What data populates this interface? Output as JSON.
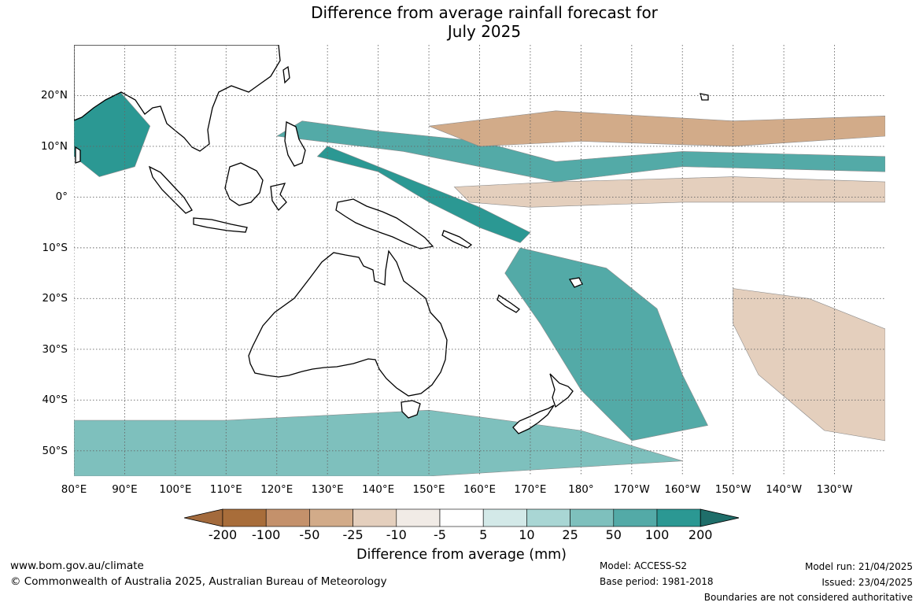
{
  "title": {
    "line1": "Difference from average rainfall forecast for",
    "line2": "July 2025"
  },
  "map": {
    "lon_range": [
      80,
      240
    ],
    "lat_range": [
      -55,
      30
    ],
    "lat_ticks": [
      {
        "value": 20,
        "label": "20°N"
      },
      {
        "value": 10,
        "label": "10°N"
      },
      {
        "value": 0,
        "label": "0°"
      },
      {
        "value": -10,
        "label": "10°S"
      },
      {
        "value": -20,
        "label": "20°S"
      },
      {
        "value": -30,
        "label": "30°S"
      },
      {
        "value": -40,
        "label": "40°S"
      },
      {
        "value": -50,
        "label": "50°S"
      }
    ],
    "lon_ticks": [
      {
        "value": 80,
        "label": "80°E"
      },
      {
        "value": 90,
        "label": "90°E"
      },
      {
        "value": 100,
        "label": "100°E"
      },
      {
        "value": 110,
        "label": "110°E"
      },
      {
        "value": 120,
        "label": "120°E"
      },
      {
        "value": 130,
        "label": "130°E"
      },
      {
        "value": 140,
        "label": "140°E"
      },
      {
        "value": 150,
        "label": "150°E"
      },
      {
        "value": 160,
        "label": "160°E"
      },
      {
        "value": 170,
        "label": "170°E"
      },
      {
        "value": 180,
        "label": "180°"
      },
      {
        "value": 190,
        "label": "170°W"
      },
      {
        "value": 200,
        "label": "160°W"
      },
      {
        "value": 210,
        "label": "150°W"
      },
      {
        "value": 220,
        "label": "140°W"
      },
      {
        "value": 230,
        "label": "130°W"
      }
    ],
    "anomaly_regions": [
      {
        "name": "Maritime Continent / western Pacific wet band",
        "level": 100,
        "points": [
          [
            128,
            8
          ],
          [
            140,
            5
          ],
          [
            150,
            -1
          ],
          [
            160,
            -6
          ],
          [
            168,
            -9
          ],
          [
            170,
            -7
          ],
          [
            160,
            -2
          ],
          [
            150,
            2
          ],
          [
            140,
            6
          ],
          [
            130,
            10
          ]
        ]
      },
      {
        "name": "Tropical band north of equator wet",
        "level": 50,
        "points": [
          [
            120,
            12
          ],
          [
            145,
            9
          ],
          [
            165,
            5
          ],
          [
            175,
            3
          ],
          [
            200,
            6
          ],
          [
            240,
            5
          ],
          [
            240,
            8
          ],
          [
            200,
            9
          ],
          [
            175,
            7
          ],
          [
            160,
            11
          ],
          [
            140,
            13
          ],
          [
            125,
            15
          ]
        ]
      },
      {
        "name": "Central Pacific dry belt north",
        "level": -50,
        "points": [
          [
            150,
            14
          ],
          [
            175,
            17
          ],
          [
            210,
            15
          ],
          [
            240,
            16
          ],
          [
            240,
            12
          ],
          [
            210,
            10
          ],
          [
            180,
            11
          ],
          [
            160,
            10
          ]
        ]
      },
      {
        "name": "Equatorial central Pacific dry",
        "level": -25,
        "points": [
          [
            155,
            2
          ],
          [
            175,
            3
          ],
          [
            210,
            4
          ],
          [
            240,
            3
          ],
          [
            240,
            -1
          ],
          [
            200,
            -1
          ],
          [
            170,
            -2
          ],
          [
            158,
            -1
          ]
        ]
      },
      {
        "name": "Bay of Bengal wet",
        "level": 100,
        "points": [
          [
            80,
            24
          ],
          [
            88,
            22
          ],
          [
            95,
            14
          ],
          [
            92,
            6
          ],
          [
            85,
            4
          ],
          [
            80,
            8
          ]
        ]
      },
      {
        "name": "Southwest Pacific wet",
        "level": 50,
        "points": [
          [
            168,
            -10
          ],
          [
            185,
            -14
          ],
          [
            195,
            -22
          ],
          [
            200,
            -35
          ],
          [
            205,
            -45
          ],
          [
            190,
            -48
          ],
          [
            180,
            -38
          ],
          [
            172,
            -25
          ],
          [
            165,
            -15
          ]
        ]
      },
      {
        "name": "Southeast Pacific dry",
        "level": -25,
        "points": [
          [
            210,
            -18
          ],
          [
            225,
            -20
          ],
          [
            240,
            -26
          ],
          [
            240,
            -48
          ],
          [
            228,
            -46
          ],
          [
            215,
            -35
          ],
          [
            210,
            -25
          ]
        ]
      },
      {
        "name": "Southern Ocean wet",
        "level": 25,
        "points": [
          [
            80,
            -44
          ],
          [
            110,
            -44
          ],
          [
            150,
            -42
          ],
          [
            180,
            -46
          ],
          [
            200,
            -52
          ],
          [
            150,
            -55
          ],
          [
            80,
            -55
          ]
        ]
      }
    ]
  },
  "colorbar": {
    "ticks": [
      "-200",
      "-100",
      "-50",
      "-25",
      "-10",
      "-5",
      "5",
      "10",
      "25",
      "50",
      "100",
      "200"
    ],
    "colors": [
      "#a36a3c",
      "#a86d3a",
      "#c4916b",
      "#d2ab89",
      "#e4cfbd",
      "#f1ebe6",
      "#ffffff",
      "#d3e9e8",
      "#a9d6d4",
      "#7ec0bd",
      "#53aaa7",
      "#2b9893",
      "#1f6e6a"
    ],
    "title": "Difference from average (mm)"
  },
  "footer": {
    "website": "www.bom.gov.au/climate",
    "copyright": "© Commonwealth of Australia 2025, Australian Bureau of Meteorology",
    "model": "Model: ACCESS-S2",
    "base_period": "Base period: 1981-2018",
    "model_run": "Model run: 21/04/2025",
    "issued": "Issued: 23/04/2025",
    "disclaimer": "Boundaries are not considered authoritative"
  }
}
